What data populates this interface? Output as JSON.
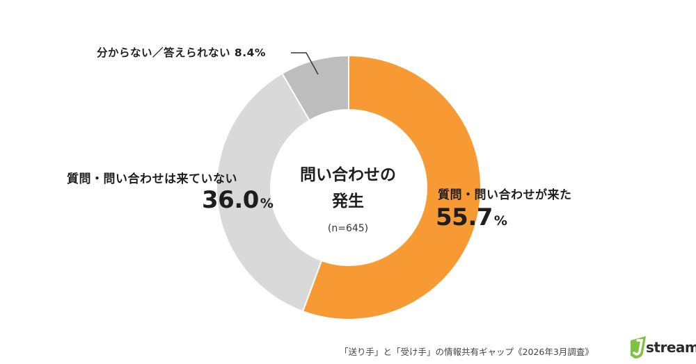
{
  "chart_data": {
    "type": "pie",
    "variant": "donut",
    "center_title_line1": "問い合わせの",
    "center_title_line2": "発生",
    "center_note": "(n=645)",
    "slices": [
      {
        "label": "質問・問い合わせが来た",
        "value": 55.7,
        "value_text": "55.7",
        "unit": "%",
        "color": "#F89A34"
      },
      {
        "label": "質問・問い合わせは来ていない",
        "value": 36.0,
        "value_text": "36.0",
        "unit": "%",
        "color": "#D9D9D9"
      },
      {
        "label": "分からない／答えられない",
        "value": 8.4,
        "value_text": "8.4%",
        "color": "#BDBDBD"
      }
    ]
  },
  "footer": {
    "source": "「送り手」と「受け手」の情報共有ギャップ《2026年3月調査》"
  },
  "logo": {
    "text": "stream",
    "colors": {
      "green": "#7DC242",
      "dark": "#2B2B2B"
    }
  }
}
